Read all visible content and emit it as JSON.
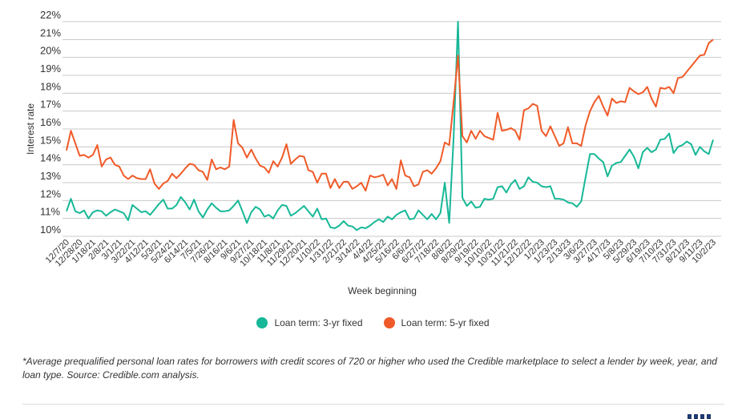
{
  "colors": {
    "three_year": "#17b897",
    "five_year": "#f05a28",
    "grid": "#c8c8c8"
  },
  "chart_data": {
    "type": "line",
    "title": "",
    "xlabel": "Week beginning",
    "ylabel": "Interest rate",
    "ylim": [
      10,
      22
    ],
    "yticks": [
      "10%",
      "11%",
      "12%",
      "13%",
      "14%",
      "15%",
      "16%",
      "17%",
      "18%",
      "19%",
      "20%",
      "21%",
      "22%"
    ],
    "grid": true,
    "legend_position": "bottom-center",
    "x_tick_every_weeks": 3,
    "x_tick_labels": [
      "12/7/20",
      "12/28/20",
      "1/18/21",
      "2/8/21",
      "3/1/21",
      "3/22/21",
      "4/12/21",
      "5/3/21",
      "5/24/21",
      "6/14/21",
      "7/5/21",
      "7/26/21",
      "8/16/21",
      "9/6/21",
      "9/27/21",
      "10/18/21",
      "11/8/21",
      "11/29/21",
      "12/20/21",
      "1/10/22",
      "1/31/22",
      "2/21/22",
      "3/14/22",
      "4/4/22",
      "4/25/22",
      "5/16/22",
      "6/6/22",
      "6/27/22",
      "7/18/22",
      "8/8/22",
      "8/29/22",
      "9/19/22",
      "10/10/22",
      "10/31/22",
      "11/21/22",
      "12/12/22",
      "1/2/23",
      "1/23/23",
      "2/13/23",
      "3/6/23",
      "3/27/23",
      "4/17/23",
      "5/8/23",
      "5/29/23",
      "6/19/23",
      "7/10/23",
      "7/31/23",
      "8/21/23",
      "9/11/23",
      "10/2/23"
    ],
    "series": [
      {
        "name": "Loan term: 3-yr fixed",
        "values": [
          11.4,
          12.1,
          11.4,
          11.3,
          11.45,
          11.0,
          11.35,
          11.45,
          11.4,
          11.15,
          11.35,
          11.5,
          11.4,
          11.3,
          10.9,
          11.75,
          11.55,
          11.35,
          11.4,
          11.2,
          11.5,
          11.8,
          12.05,
          11.55,
          11.55,
          11.75,
          12.2,
          11.9,
          11.5,
          12.05,
          11.4,
          11.05,
          11.5,
          11.85,
          11.6,
          11.4,
          11.4,
          11.45,
          11.7,
          12.0,
          11.4,
          10.75,
          11.35,
          11.65,
          11.5,
          11.1,
          11.2,
          11.0,
          11.45,
          11.75,
          11.7,
          11.15,
          11.3,
          11.5,
          11.7,
          11.4,
          11.1,
          11.55,
          10.95,
          11.0,
          10.5,
          10.45,
          10.6,
          10.85,
          10.6,
          10.55,
          10.35,
          10.5,
          10.45,
          10.6,
          10.8,
          10.95,
          10.8,
          11.1,
          10.95,
          11.2,
          11.35,
          11.45,
          10.95,
          11.0,
          11.45,
          11.2,
          10.95,
          11.25,
          10.95,
          11.3,
          13.0,
          10.75,
          15.5,
          22.0,
          12.15,
          11.7,
          11.95,
          11.6,
          11.65,
          12.1,
          12.05,
          12.1,
          12.75,
          12.8,
          12.45,
          12.9,
          13.15,
          12.65,
          12.8,
          13.3,
          13.05,
          13.0,
          12.8,
          12.75,
          12.8,
          12.1,
          12.1,
          12.05,
          11.9,
          11.85,
          11.65,
          11.95,
          13.3,
          14.6,
          14.6,
          14.35,
          14.15,
          13.35,
          13.95,
          14.1,
          14.15,
          14.5,
          14.85,
          14.45,
          13.8,
          14.7,
          14.95,
          14.7,
          14.85,
          15.4,
          15.45,
          15.75,
          14.65,
          15.0,
          15.1,
          15.3,
          15.15,
          14.55,
          15.0,
          14.75,
          14.6,
          15.4
        ]
      },
      {
        "name": "Loan term: 5-yr fixed",
        "values": [
          14.8,
          15.9,
          15.2,
          14.5,
          14.55,
          14.4,
          14.55,
          15.1,
          13.9,
          14.3,
          14.4,
          14.0,
          13.9,
          13.4,
          13.2,
          13.4,
          13.25,
          13.2,
          13.2,
          13.75,
          12.95,
          12.65,
          12.95,
          13.1,
          13.5,
          13.25,
          13.5,
          13.8,
          14.05,
          14.0,
          13.7,
          13.6,
          13.15,
          14.3,
          13.75,
          13.85,
          13.75,
          13.9,
          16.5,
          15.2,
          14.95,
          14.4,
          14.85,
          14.35,
          13.95,
          13.85,
          13.55,
          14.2,
          13.9,
          14.4,
          15.15,
          14.05,
          14.3,
          14.5,
          14.45,
          13.7,
          13.6,
          13.0,
          13.5,
          13.5,
          12.7,
          13.2,
          12.7,
          13.05,
          13.05,
          12.65,
          12.8,
          13.0,
          12.55,
          13.4,
          13.3,
          13.35,
          13.45,
          12.85,
          13.2,
          12.65,
          14.25,
          13.4,
          13.3,
          12.8,
          12.9,
          13.6,
          13.7,
          13.5,
          13.8,
          14.2,
          15.25,
          15.1,
          17.5,
          20.1,
          15.6,
          15.25,
          15.9,
          15.45,
          15.9,
          15.6,
          15.5,
          15.4,
          16.9,
          15.9,
          15.95,
          16.05,
          15.9,
          15.4,
          17.05,
          17.15,
          17.4,
          17.3,
          15.9,
          15.6,
          16.15,
          15.6,
          15.05,
          15.2,
          16.1,
          15.2,
          15.2,
          15.05,
          16.2,
          17.0,
          17.5,
          17.85,
          17.25,
          16.75,
          17.7,
          17.45,
          17.55,
          17.5,
          18.3,
          18.1,
          17.95,
          18.05,
          18.35,
          17.7,
          17.25,
          18.3,
          18.25,
          18.35,
          18.0,
          18.85,
          18.9,
          19.2,
          19.5,
          19.8,
          20.1,
          20.15,
          20.8,
          21.0
        ]
      }
    ]
  },
  "legend": {
    "three_year": "Loan term: 3-yr fixed",
    "five_year": "Loan term: 5-yr fixed"
  },
  "footnote": "*Average prequalified personal loan rates for borrowers with credit scores of 720 or higher who used the Credible marketplace to select a lender by week, year, and loan type. Source: Credible.com analysis."
}
